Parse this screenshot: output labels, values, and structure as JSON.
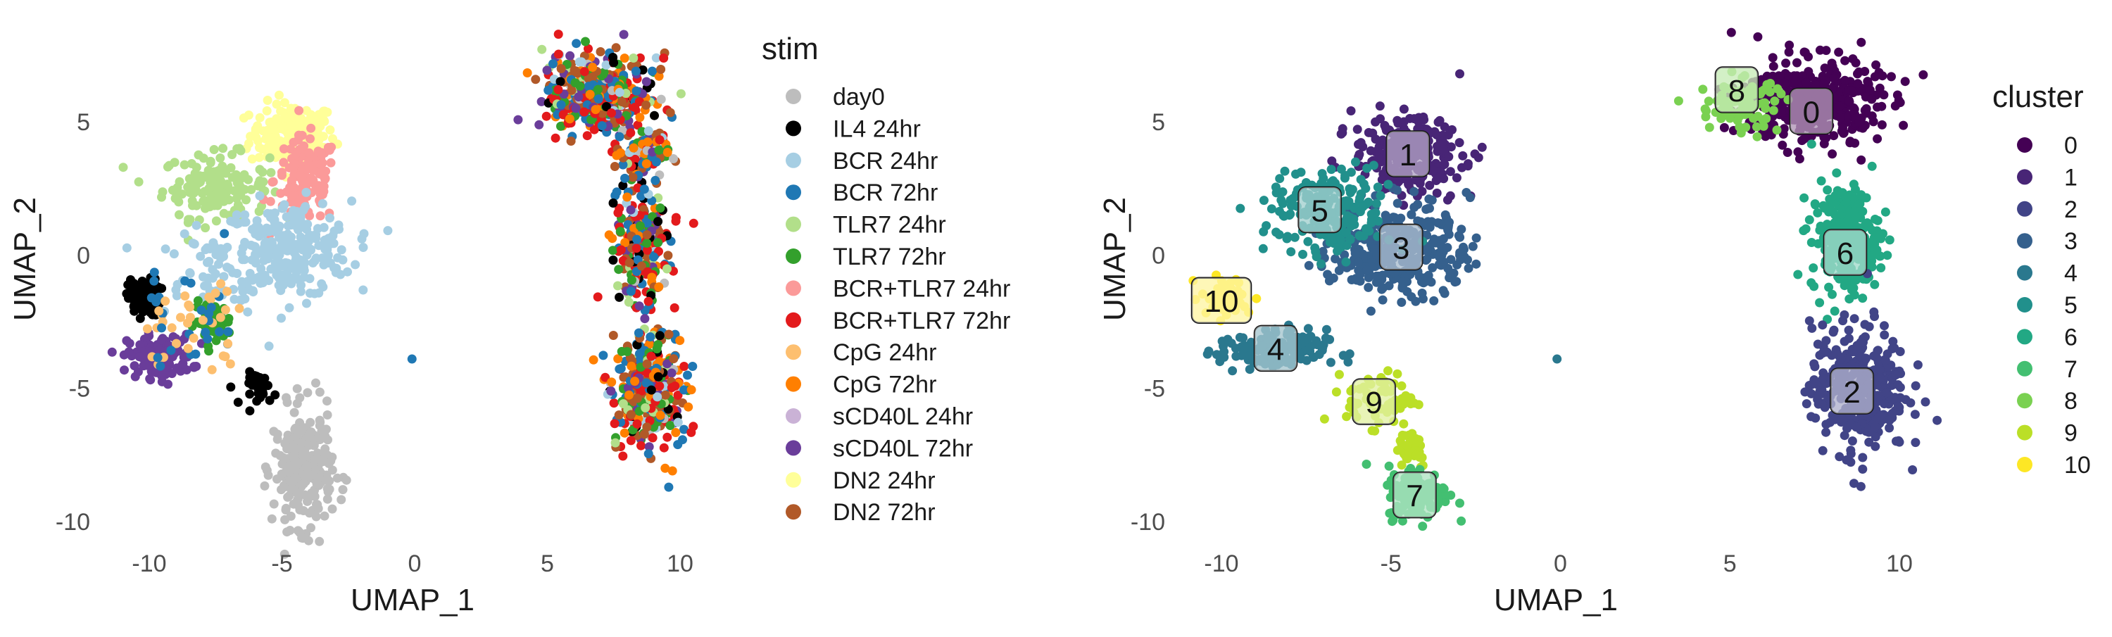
{
  "chart_data": [
    {
      "type": "scatter",
      "xlabel": "UMAP_1",
      "ylabel": "UMAP_2",
      "xlim": [
        -11.2,
        11.2
      ],
      "ylim": [
        -11.0,
        8.3
      ],
      "xticks": [
        "-10",
        "-5",
        "0",
        "5",
        "10"
      ],
      "xtick_values": [
        -10,
        -5,
        0,
        5,
        10
      ],
      "yticks": [
        "5",
        "0",
        "-5",
        "-10"
      ],
      "ytick_values": [
        5,
        0,
        -5,
        -10
      ],
      "grid": false,
      "legend": {
        "title": "stim",
        "placement": "right",
        "entries": [
          {
            "label": "day0",
            "color": "#BDBDBD"
          },
          {
            "label": "IL4 24hr",
            "color": "#000000"
          },
          {
            "label": "BCR 24hr",
            "color": "#A6CEE3"
          },
          {
            "label": "BCR 72hr",
            "color": "#1F78B4"
          },
          {
            "label": "TLR7 24hr",
            "color": "#B2DF8A"
          },
          {
            "label": "TLR7 72hr",
            "color": "#33A02C"
          },
          {
            "label": "BCR+TLR7 24hr",
            "color": "#FB9A99"
          },
          {
            "label": "BCR+TLR7 72hr",
            "color": "#E31A1C"
          },
          {
            "label": "CpG 24hr",
            "color": "#FDBF6F"
          },
          {
            "label": "CpG 72hr",
            "color": "#FF7F00"
          },
          {
            "label": "sCD40L 24hr",
            "color": "#CAB2D6"
          },
          {
            "label": "sCD40L 72hr",
            "color": "#6A3D9A"
          },
          {
            "label": "DN2 24hr",
            "color": "#FFFF99"
          },
          {
            "label": "DN2 72hr",
            "color": "#B15928"
          }
        ]
      }
    },
    {
      "type": "scatter",
      "xlabel": "UMAP_1",
      "ylabel": "UMAP_2",
      "xlim": [
        -11.2,
        11.2
      ],
      "ylim": [
        -11.0,
        8.3
      ],
      "xticks": [
        "-10",
        "-5",
        "0",
        "5",
        "10"
      ],
      "xtick_values": [
        -10,
        -5,
        0,
        5,
        10
      ],
      "yticks": [
        "5",
        "0",
        "-5",
        "-10"
      ],
      "ytick_values": [
        5,
        0,
        -5,
        -10
      ],
      "grid": false,
      "cluster_labels": [
        {
          "label": "0",
          "x": 7.4,
          "y": 5.4
        },
        {
          "label": "1",
          "x": -4.5,
          "y": 3.8
        },
        {
          "label": "2",
          "x": 8.6,
          "y": -5.1
        },
        {
          "label": "3",
          "x": -4.7,
          "y": 0.3
        },
        {
          "label": "4",
          "x": -8.4,
          "y": -3.5
        },
        {
          "label": "5",
          "x": -7.1,
          "y": 1.7
        },
        {
          "label": "6",
          "x": 8.4,
          "y": 0.1
        },
        {
          "label": "7",
          "x": -4.3,
          "y": -9.0
        },
        {
          "label": "8",
          "x": 5.2,
          "y": 6.2
        },
        {
          "label": "9",
          "x": -5.5,
          "y": -5.5
        },
        {
          "label": "10",
          "x": -10.0,
          "y": -1.7
        }
      ],
      "legend": {
        "title": "cluster",
        "placement": "right",
        "entries": [
          {
            "label": "0",
            "color": "#440154"
          },
          {
            "label": "1",
            "color": "#482576"
          },
          {
            "label": "2",
            "color": "#414487"
          },
          {
            "label": "3",
            "color": "#35608D"
          },
          {
            "label": "4",
            "color": "#2A788E"
          },
          {
            "label": "5",
            "color": "#21908C"
          },
          {
            "label": "6",
            "color": "#22A884"
          },
          {
            "label": "7",
            "color": "#43BF71"
          },
          {
            "label": "8",
            "color": "#7AD151"
          },
          {
            "label": "9",
            "color": "#BBDF27"
          },
          {
            "label": "10",
            "color": "#FDE725"
          }
        ]
      }
    }
  ]
}
